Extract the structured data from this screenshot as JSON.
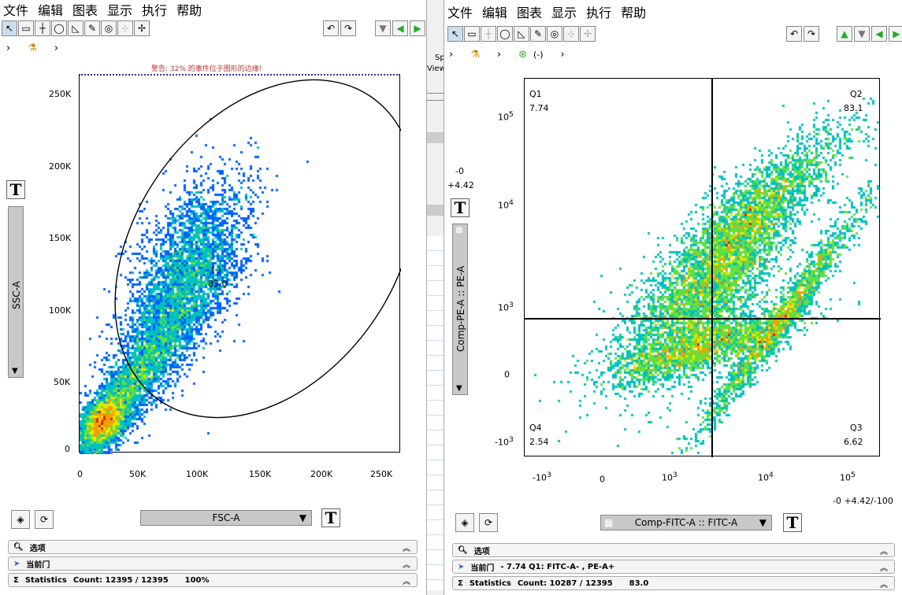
{
  "menu": [
    "文件",
    "编辑",
    "图表",
    "显示",
    "执行",
    "帮助"
  ],
  "left": {
    "warning": "警告: 32% 的事件位于图形的边缘!",
    "y_ticks": [
      "250K",
      "200K",
      "150K",
      "100K",
      "50K",
      "0"
    ],
    "x_ticks": [
      "0",
      "50K",
      "100K",
      "150K",
      "200K",
      "250K"
    ],
    "gate_name": "(-)",
    "gate_value": "83.0",
    "y_param": "SSC-A",
    "x_param": "FSC-A",
    "panel_options": "选项",
    "panel_gate": "当前门",
    "stats_label": "Statistics",
    "stats_text": "Count: 12395 / 12395      100%",
    "side_tab_1": "Sp",
    "side_tab_2": "View"
  },
  "right": {
    "crumb_gate": "(-)",
    "offset_top": "-0",
    "offset_bottom": "+4.42",
    "quadrants": {
      "q1_name": "Q1",
      "q1_val": "7.74",
      "q2_name": "Q2",
      "q2_val": "83.1",
      "q3_name": "Q3",
      "q3_val": "6.62",
      "q4_name": "Q4",
      "q4_val": "2.54"
    },
    "y_ticks": [
      {
        "base": "10",
        "exp": "5"
      },
      {
        "base": "10",
        "exp": "4"
      },
      {
        "base": "10",
        "exp": "3"
      },
      {
        "base": "0",
        "exp": ""
      },
      {
        "base": "-10",
        "exp": "3"
      }
    ],
    "x_ticks": [
      {
        "base": "-10",
        "exp": "3"
      },
      {
        "base": "0",
        "exp": ""
      },
      {
        "base": "10",
        "exp": "3"
      },
      {
        "base": "10",
        "exp": "4"
      },
      {
        "base": "10",
        "exp": "5"
      }
    ],
    "y_param": "Comp-PE-A :: PE-A",
    "x_param": "Comp-FITC-A :: FITC-A",
    "transform_readout": "-0 +4.42/-100",
    "panel_options": "选项",
    "panel_gate": "当前门",
    "panel_gate_detail": "-  7.74 Q1: FITC-A- , PE-A+",
    "stats_label": "Statistics",
    "stats_text": "Count: 10287 / 12395      83.0"
  },
  "icons": {
    "pointer": "pointer-icon",
    "rect": "rectangle-gate-icon",
    "cross": "crosshair-icon",
    "ellipse": "ellipse-gate-icon",
    "poly": "polygon-gate-icon",
    "pencil": "freehand-gate-icon",
    "eye": "eye-icon",
    "tube": "tube-icon"
  }
}
